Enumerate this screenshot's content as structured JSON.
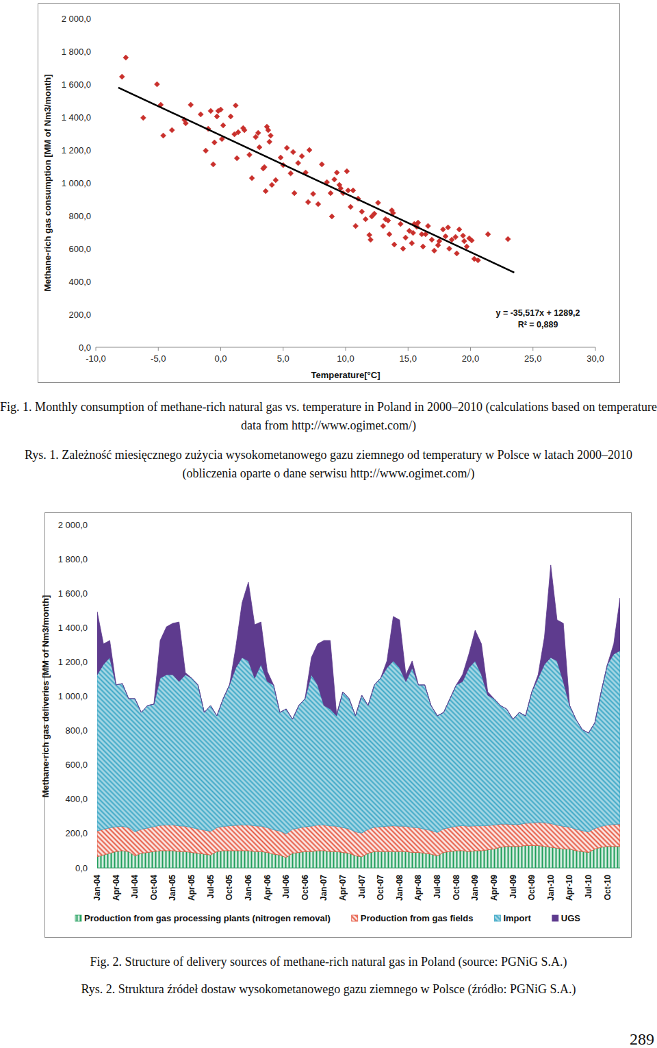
{
  "chart_data": [
    {
      "type": "scatter",
      "x_label": "Temperature[°C]",
      "y_label": "Methane-rich gas consumption [MM of Nm3/month]",
      "xlim": [
        -10,
        30
      ],
      "ylim": [
        0,
        2000
      ],
      "xticks": [
        {
          "value": -10,
          "label": "-10,0"
        },
        {
          "value": -5,
          "label": "-5,0"
        },
        {
          "value": 0,
          "label": "0,0"
        },
        {
          "value": 5,
          "label": "5,0"
        },
        {
          "value": 10,
          "label": "10,0"
        },
        {
          "value": 15,
          "label": "15,0"
        },
        {
          "value": 20,
          "label": "20,0"
        },
        {
          "value": 25,
          "label": "25,0"
        },
        {
          "value": 30,
          "label": "30,0"
        }
      ],
      "yticks": [
        {
          "value": 0,
          "label": "0,0"
        },
        {
          "value": 200,
          "label": "200,0"
        },
        {
          "value": 400,
          "label": "400,0"
        },
        {
          "value": 600,
          "label": "600,0"
        },
        {
          "value": 800,
          "label": "800,0"
        },
        {
          "value": 1000,
          "label": "1 000,0"
        },
        {
          "value": 1200,
          "label": "1 200,0"
        },
        {
          "value": 1400,
          "label": "1 400,0"
        },
        {
          "value": 1600,
          "label": "1 600,0"
        },
        {
          "value": 1800,
          "label": "1 800,0"
        },
        {
          "value": 2000,
          "label": "2 000,0"
        }
      ],
      "grid": false,
      "annotations": [
        "y = -35,517x + 1289,2",
        "R² = 0,889"
      ],
      "series": [
        {
          "type": "scatter",
          "marker": "diamond",
          "color": "#c9302c",
          "x": [
            -7.9,
            -7.6,
            -6.2,
            -5.1,
            -4.8,
            -4.6,
            -3.9,
            -2.9,
            -2.8,
            -2.4,
            -1.6,
            -1.2,
            -1.0,
            -0.8,
            -0.6,
            -0.5,
            -0.3,
            -0.2,
            0.0,
            0.1,
            0.2,
            0.8,
            1.2,
            1.1,
            1.4,
            1.3,
            1.8,
            1.9,
            2.3,
            2.5,
            2.8,
            3.0,
            3.1,
            3.4,
            3.5,
            3.6,
            3.7,
            3.8,
            3.9,
            4.0,
            4.1,
            4.4,
            4.8,
            5.0,
            5.3,
            5.6,
            5.8,
            5.9,
            6.2,
            6.5,
            6.8,
            7.0,
            7.1,
            7.4,
            7.8,
            8.1,
            8.5,
            8.8,
            8.9,
            9.1,
            9.3,
            9.5,
            9.6,
            9.8,
            10.1,
            10.2,
            10.4,
            10.6,
            10.8,
            11.0,
            11.3,
            11.6,
            11.9,
            12.0,
            12.1,
            12.3,
            12.6,
            13.0,
            13.2,
            13.4,
            13.5,
            13.7,
            13.8,
            13.9,
            14.4,
            14.6,
            14.8,
            15.1,
            15.3,
            15.4,
            15.5,
            15.7,
            15.8,
            16.1,
            16.2,
            16.4,
            16.6,
            16.9,
            17.1,
            17.4,
            17.5,
            17.8,
            18.0,
            18.2,
            18.3,
            18.5,
            18.8,
            18.9,
            19.1,
            19.4,
            19.5,
            19.7,
            19.9,
            20.1,
            20.3,
            20.6,
            21.4,
            23.0
          ],
          "values": [
            1646,
            1762,
            1396,
            1600,
            1475,
            1288,
            1321,
            1383,
            1363,
            1475,
            1417,
            1196,
            1329,
            1438,
            1113,
            1246,
            1404,
            1438,
            1446,
            1267,
            1350,
            1404,
            1471,
            1296,
            1308,
            1150,
            1333,
            1321,
            1171,
            1029,
            1279,
            1304,
            1217,
            1088,
            1096,
            950,
            1342,
            1321,
            1250,
            1288,
            988,
            1017,
            1154,
            1108,
            1213,
            1058,
            1188,
            938,
            1121,
            1163,
            1063,
            883,
            1200,
            933,
            871,
            1113,
            1004,
            938,
            796,
            1021,
            1063,
            988,
            967,
            938,
            1071,
            954,
            854,
            954,
            738,
            904,
            825,
            779,
            683,
            654,
            796,
            813,
            879,
            738,
            779,
            771,
            688,
            833,
            817,
            625,
            750,
            600,
            667,
            708,
            633,
            696,
            750,
            733,
            758,
            688,
            613,
            688,
            738,
            654,
            588,
            621,
            646,
            717,
            675,
            729,
            600,
            654,
            671,
            571,
            717,
            679,
            646,
            613,
            663,
            650,
            538,
            529,
            688,
            658
          ]
        },
        {
          "type": "line",
          "line_style": "solid",
          "color": "#000000",
          "x": [
            -8.2,
            23.5
          ],
          "values": [
            1580,
            455
          ]
        }
      ]
    },
    {
      "type": "area",
      "stacked": true,
      "legend": "bottom",
      "grid": false,
      "y_label": "Methane-rich gas deliveries [MM of Nm3/month]",
      "ylim": [
        0,
        2000
      ],
      "yticks": [
        {
          "value": 0,
          "label": "0,0"
        },
        {
          "value": 200,
          "label": "200,0"
        },
        {
          "value": 400,
          "label": "400,0"
        },
        {
          "value": 600,
          "label": "600,0"
        },
        {
          "value": 800,
          "label": "800,0"
        },
        {
          "value": 1000,
          "label": "1 000,0"
        },
        {
          "value": 1200,
          "label": "1 200,0"
        },
        {
          "value": 1400,
          "label": "1 400,0"
        },
        {
          "value": 1600,
          "label": "1 600,0"
        },
        {
          "value": 1800,
          "label": "1 800,0"
        },
        {
          "value": 2000,
          "label": "2 000,0"
        }
      ],
      "categories": [
        "Jan-04",
        null,
        null,
        "Apr-04",
        null,
        null,
        "Jul-04",
        null,
        null,
        "Oct-04",
        null,
        null,
        "Jan-05",
        null,
        null,
        "Apr-05",
        null,
        null,
        "Jul-05",
        null,
        null,
        "Oct-05",
        null,
        null,
        "Jan-06",
        null,
        null,
        "Apr-06",
        null,
        null,
        "Jul-06",
        null,
        null,
        "Oct-06",
        null,
        null,
        "Jan-07",
        null,
        null,
        "Apr-07",
        null,
        null,
        "Jul-07",
        null,
        null,
        "Oct-07",
        null,
        null,
        "Jan-08",
        null,
        null,
        "Apr-08",
        null,
        null,
        "Jul-08",
        null,
        null,
        "Oct-08",
        null,
        null,
        "Jan-09",
        null,
        null,
        "Apr-09",
        null,
        null,
        "Jul-09",
        null,
        null,
        "Oct-09",
        null,
        null,
        "Jan-10",
        null,
        null,
        "Apr-10",
        null,
        null,
        "Jul-10",
        null,
        null,
        "Oct-10",
        null,
        null
      ],
      "series": [
        {
          "name": "Production from gas processing plants (nitrogen removal)",
          "color": "#1e9e5a",
          "values": [
            65,
            75,
            85,
            95,
            100,
            95,
            70,
            85,
            90,
            95,
            100,
            100,
            100,
            95,
            95,
            90,
            85,
            80,
            75,
            95,
            100,
            100,
            100,
            100,
            100,
            95,
            95,
            90,
            80,
            75,
            60,
            85,
            90,
            95,
            95,
            100,
            100,
            95,
            95,
            90,
            85,
            70,
            65,
            85,
            95,
            95,
            95,
            95,
            95,
            95,
            90,
            90,
            85,
            80,
            70,
            90,
            95,
            100,
            100,
            95,
            100,
            100,
            105,
            110,
            120,
            125,
            125,
            125,
            130,
            130,
            130,
            125,
            120,
            115,
            110,
            110,
            100,
            95,
            90,
            110,
            120,
            125,
            125,
            125
          ]
        },
        {
          "name": "Production from gas fields",
          "color": "#e5533d",
          "values": [
            150,
            150,
            148,
            145,
            142,
            140,
            140,
            140,
            142,
            145,
            148,
            150,
            150,
            150,
            148,
            145,
            142,
            140,
            138,
            140,
            142,
            145,
            148,
            150,
            150,
            150,
            148,
            145,
            142,
            140,
            138,
            140,
            142,
            145,
            148,
            150,
            150,
            150,
            148,
            145,
            142,
            140,
            138,
            140,
            142,
            145,
            148,
            150,
            148,
            148,
            146,
            144,
            140,
            138,
            136,
            138,
            140,
            143,
            146,
            148,
            145,
            145,
            142,
            140,
            135,
            130,
            128,
            128,
            130,
            132,
            135,
            138,
            138,
            135,
            132,
            128,
            125,
            122,
            120,
            120,
            122,
            125,
            128,
            130
          ]
        },
        {
          "name": "Import",
          "color": "#3ba7c6",
          "values": [
            911,
            961,
            993,
            826,
            832,
            751,
            776,
            681,
            714,
            714,
            858,
            876,
            876,
            841,
            883,
            871,
            839,
            686,
            733,
            651,
            744,
            821,
            918,
            976,
            956,
            861,
            943,
            851,
            844,
            691,
            728,
            641,
            714,
            746,
            883,
            816,
            696,
            681,
            643,
            791,
            759,
            676,
            803,
            721,
            829,
            866,
            923,
            961,
            923,
            843,
            930,
            832,
            841,
            728,
            680,
            678,
            751,
            823,
            840,
            923,
            961,
            881,
            759,
            736,
            691,
            671,
            613,
            653,
            626,
            764,
            841,
            923,
            968,
            956,
            844,
            708,
            641,
            589,
            576,
            616,
            784,
            936,
            993,
            1011
          ]
        },
        {
          "name": "UGS",
          "color": "#5e3b8e",
          "values": [
            367,
            119,
            99,
            0,
            0,
            0,
            0,
            0,
            0,
            0,
            219,
            279,
            299,
            347,
            12,
            0,
            0,
            0,
            0,
            0,
            0,
            0,
            119,
            319,
            459,
            311,
            247,
            60,
            0,
            0,
            0,
            0,
            0,
            0,
            100,
            239,
            379,
            399,
            10,
            0,
            0,
            0,
            0,
            0,
            0,
            0,
            40,
            259,
            279,
            40,
            40,
            0,
            0,
            0,
            0,
            0,
            0,
            0,
            40,
            80,
            179,
            179,
            20,
            0,
            0,
            0,
            0,
            0,
            0,
            0,
            20,
            159,
            539,
            239,
            339,
            0,
            0,
            0,
            0,
            0,
            0,
            0,
            59,
            307
          ]
        }
      ]
    }
  ],
  "captions": [
    "Fig. 1. Monthly consumption of methane-rich natural gas vs. temperature in Poland in 2000–2010 (calculations based on temperature data from http://www.ogimet.com/)",
    "Rys. 1. Zależność miesięcznego zużycia wysokometanowego gazu ziemnego od temperatury w Polsce w latach 2000–2010 (obliczenia oparte o dane serwisu http://www.ogimet.com/)",
    "Fig. 2. Structure of delivery sources of methane-rich natural gas in Poland (source: PGNiG S.A.)",
    "Rys. 2. Struktura źródeł dostaw wysokometanowego gazu ziemnego w Polsce (źródło: PGNiG S.A.)"
  ],
  "page_number": "289"
}
